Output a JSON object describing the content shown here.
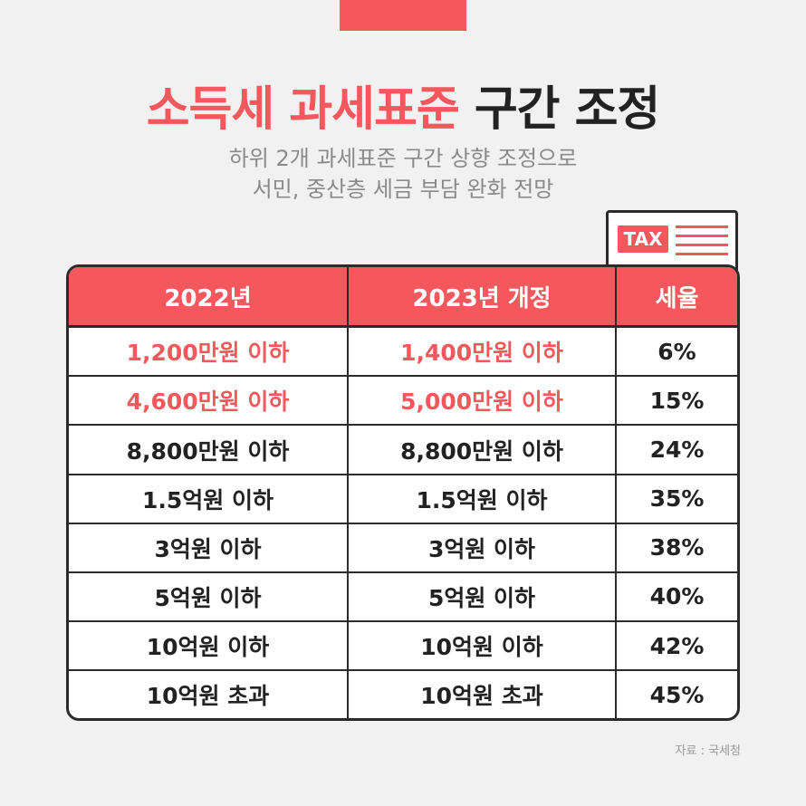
{
  "title": {
    "accent": "소득세 과세표준",
    "rest": "구간 조정"
  },
  "subtitle": [
    "하위 2개 과세표준 구간 상향 조정으로",
    "서민, 중산층 세금 부담 완화 전망"
  ],
  "tax_badge": "TAX",
  "table": {
    "headers": [
      "2022년",
      "2023년 개정",
      "세율"
    ],
    "rows": [
      {
        "y2022": "1,200만원 이하",
        "y2023": "1,400만원 이하",
        "rate": "6%",
        "highlight": true
      },
      {
        "y2022": "4,600만원 이하",
        "y2023": "5,000만원 이하",
        "rate": "15%",
        "highlight": true
      },
      {
        "y2022": "8,800만원 이하",
        "y2023": "8,800만원 이하",
        "rate": "24%",
        "highlight": false
      },
      {
        "y2022": "1.5억원 이하",
        "y2023": "1.5억원 이하",
        "rate": "35%",
        "highlight": false
      },
      {
        "y2022": "3억원 이하",
        "y2023": "3억원 이하",
        "rate": "38%",
        "highlight": false
      },
      {
        "y2022": "5억원 이하",
        "y2023": "5억원 이하",
        "rate": "40%",
        "highlight": false
      },
      {
        "y2022": "10억원 이하",
        "y2023": "10억원 이하",
        "rate": "42%",
        "highlight": false
      },
      {
        "y2022": "10억원 초과",
        "y2023": "10억원 초과",
        "rate": "45%",
        "highlight": false
      }
    ]
  },
  "source": "자료 : 국세청",
  "colors": {
    "accent": "#f4585c",
    "text": "#222222",
    "border": "#2b2b2b"
  }
}
